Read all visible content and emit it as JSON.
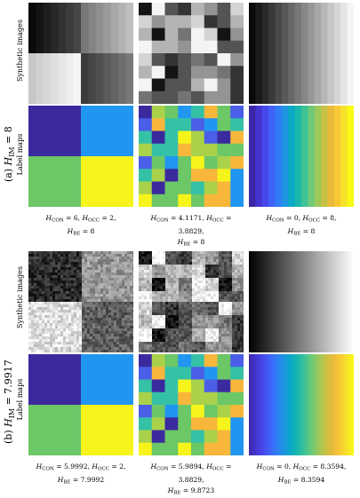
{
  "row_labels": {
    "synthetic": "Synthetic images",
    "label": "Label maps"
  },
  "groups": [
    {
      "id": "a",
      "label_prefix": "(a) ",
      "label_var": "H",
      "label_sub": "IM",
      "label_value": " = 8",
      "captions": [
        [
          {
            "t": "H",
            "s": "CON",
            "v": " = 6, "
          },
          {
            "t": "H",
            "s": "OCC",
            "v": " = 2,"
          },
          {
            "t": "H",
            "s": "BE",
            "v": " = 8"
          }
        ],
        [
          {
            "t": "H",
            "s": "CON",
            "v": " = 4.1171, "
          },
          {
            "t": "H",
            "s": "OCC",
            "v": " = 3.8829,"
          },
          {
            "t": "H",
            "s": "BE",
            "v": " = 8"
          }
        ],
        [
          {
            "t": "H",
            "s": "CON",
            "v": " = 0, "
          },
          {
            "t": "H",
            "s": "OCC",
            "v": " = 8,"
          },
          {
            "t": "H",
            "s": "BE",
            "v": " = 8"
          }
        ]
      ]
    },
    {
      "id": "b",
      "label_prefix": "(b) ",
      "label_var": "H",
      "label_sub": "IM",
      "label_value": " = 7.9917",
      "captions": [
        [
          {
            "t": "H",
            "s": "CON",
            "v": " = 5.9992, "
          },
          {
            "t": "H",
            "s": "OCC",
            "v": " = 2,"
          },
          {
            "t": "H",
            "s": "BE",
            "v": " = 7.9992"
          }
        ],
        [
          {
            "t": "H",
            "s": "CON",
            "v": " = 5.9894, "
          },
          {
            "t": "H",
            "s": "OCC",
            "v": " = 3.8829,"
          },
          {
            "t": "H",
            "s": "BE",
            "v": " = 9.8723"
          }
        ],
        [
          {
            "t": "H",
            "s": "CON",
            "v": " = 0, "
          },
          {
            "t": "H",
            "s": "OCC",
            "v": " = 8.3594,"
          },
          {
            "t": "H",
            "s": "BE",
            "v": " = 8.3594"
          }
        ]
      ]
    }
  ],
  "label_palette": [
    "#3b2a9e",
    "#2196f0",
    "#6cc766",
    "#f6f41a",
    "#f8b73b",
    "#35c1a6",
    "#4a5ee8",
    "#a9d24a"
  ]
}
